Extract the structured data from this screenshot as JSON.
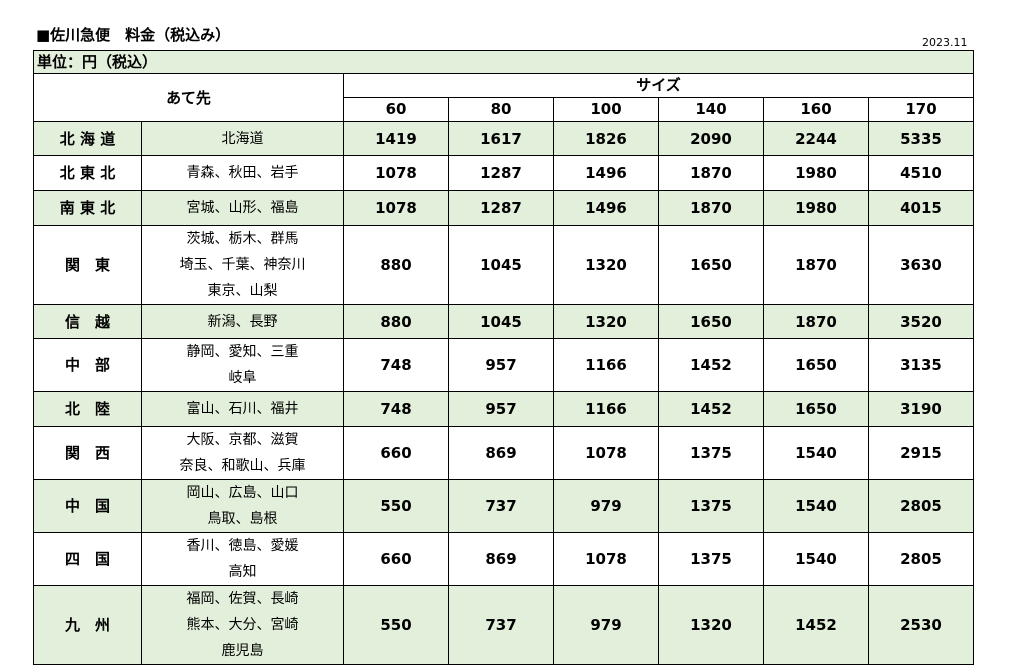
{
  "title": "■佐川急便　料金（税込み）",
  "date": "2023.11",
  "table": {
    "unit": "単位：円（税込）",
    "header": {
      "destination": "あて先",
      "size": "サイズ",
      "sizes": [
        60,
        80,
        100,
        140,
        160,
        170
      ]
    },
    "rows": [
      {
        "region": "北 海 道",
        "areas": [
          "北海道"
        ],
        "prices": [
          1419,
          1617,
          1826,
          2090,
          2244,
          5335
        ]
      },
      {
        "region": "北 東 北",
        "areas": [
          "青森、秋田、岩手"
        ],
        "prices": [
          1078,
          1287,
          1496,
          1870,
          1980,
          4510
        ]
      },
      {
        "region": "南 東 北",
        "areas": [
          "宮城、山形、福島"
        ],
        "prices": [
          1078,
          1287,
          1496,
          1870,
          1980,
          4015
        ]
      },
      {
        "region": "関　東",
        "areas": [
          "茨城、栃木、群馬",
          "埼玉、千葉、神奈川",
          "東京、山梨"
        ],
        "prices": [
          880,
          1045,
          1320,
          1650,
          1870,
          3630
        ]
      },
      {
        "region": "信　越",
        "areas": [
          "新潟、長野"
        ],
        "prices": [
          880,
          1045,
          1320,
          1650,
          1870,
          3520
        ]
      },
      {
        "region": "中　部",
        "areas": [
          "静岡、愛知、三重",
          "岐阜"
        ],
        "prices": [
          748,
          957,
          1166,
          1452,
          1650,
          3135
        ]
      },
      {
        "region": "北　陸",
        "areas": [
          "富山、石川、福井"
        ],
        "prices": [
          748,
          957,
          1166,
          1452,
          1650,
          3190
        ]
      },
      {
        "region": "関　西",
        "areas": [
          "大阪、京都、滋賀",
          "奈良、和歌山、兵庫"
        ],
        "prices": [
          660,
          869,
          1078,
          1375,
          1540,
          2915
        ]
      },
      {
        "region": "中　国",
        "areas": [
          "岡山、広島、山口",
          "鳥取、島根"
        ],
        "prices": [
          550,
          737,
          979,
          1375,
          1540,
          2805
        ]
      },
      {
        "region": "四　国",
        "areas": [
          "香川、徳島、愛媛",
          "高知"
        ],
        "prices": [
          660,
          869,
          1078,
          1375,
          1540,
          2805
        ]
      },
      {
        "region": "九　州",
        "areas": [
          "福岡、佐賀、長崎",
          "熊本、大分、宮崎",
          "鹿児島"
        ],
        "prices": [
          550,
          737,
          979,
          1320,
          1452,
          2530
        ]
      }
    ]
  }
}
